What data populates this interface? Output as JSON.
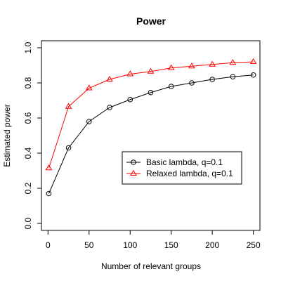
{
  "chart_data": {
    "type": "line",
    "title": "Power",
    "xlabel": "Number of relevant groups",
    "ylabel": "Estimated power",
    "xlim": [
      -8,
      258
    ],
    "ylim": [
      -0.04,
      1.04
    ],
    "x_ticks": [
      0,
      50,
      100,
      150,
      200,
      250
    ],
    "y_ticks": [
      0.0,
      0.2,
      0.4,
      0.6,
      0.8,
      1.0
    ],
    "x_tick_labels": [
      "0",
      "50",
      "100",
      "150",
      "200",
      "250"
    ],
    "y_tick_labels": [
      "0.0",
      "0.2",
      "0.4",
      "0.6",
      "0.8",
      "1.0"
    ],
    "grid": false,
    "legend_position": "center-right",
    "x": [
      1,
      25,
      50,
      75,
      100,
      125,
      150,
      175,
      200,
      225,
      250
    ],
    "series": [
      {
        "name": "Basic lambda, q=0.1",
        "color": "#000000",
        "marker": "circle",
        "values": [
          0.17,
          0.43,
          0.58,
          0.66,
          0.705,
          0.745,
          0.78,
          0.8,
          0.82,
          0.835,
          0.845
        ]
      },
      {
        "name": "Relaxed lambda, q=0.1",
        "color": "#ff0000",
        "marker": "triangle",
        "values": [
          0.315,
          0.665,
          0.77,
          0.82,
          0.85,
          0.865,
          0.885,
          0.895,
          0.905,
          0.915,
          0.92
        ]
      }
    ]
  }
}
